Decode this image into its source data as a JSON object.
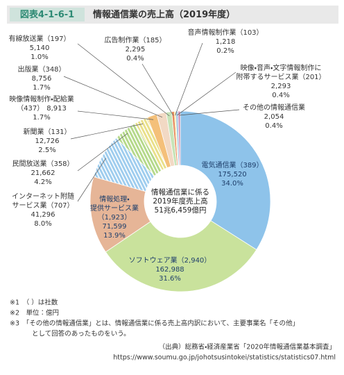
{
  "chart_data": {
    "type": "donut",
    "figure_label": "図表4-1-6-1",
    "title": "情報通信業の売上高（2019年度）",
    "center_label": [
      "情報通信業に係る",
      "2019年度売上高",
      "51兆6,459億円"
    ],
    "slices": [
      {
        "name": [
          "電気通信業（389）"
        ],
        "value": 175520,
        "value_label": "175,520",
        "share": 34.0,
        "share_label": "34.0%",
        "color": "#8ec3ea",
        "hatch": false
      },
      {
        "name": [
          "ソフトウェア業（2,940）"
        ],
        "value": 162988,
        "value_label": "162,988",
        "share": 31.6,
        "share_label": "31.6%",
        "color": "#c9e29c",
        "hatch": false
      },
      {
        "name": [
          "情報処理・",
          "提供サービス業",
          "（1,923）"
        ],
        "value": 71599,
        "value_label": "71,599",
        "share": 13.9,
        "share_label": "13.9%",
        "color": "#e6b597",
        "hatch": false
      },
      {
        "name": [
          "インターネット附随",
          "サービス業（707）"
        ],
        "value": 41296,
        "value_label": "41,296",
        "share": 8.0,
        "share_label": "8.0%",
        "color": "#9fcdee",
        "hatch": true
      },
      {
        "name": [
          "民間放送業（358）"
        ],
        "value": 21662,
        "value_label": "21,662",
        "share": 4.2,
        "share_label": "4.2%",
        "color": "#b5d98a",
        "hatch": true
      },
      {
        "name": [
          "新聞業（131）"
        ],
        "value": 12726,
        "value_label": "12,726",
        "share": 2.5,
        "share_label": "2.5%",
        "color": "#e9e08a",
        "hatch": true
      },
      {
        "name": [
          "映像情報制作・配給業",
          "（437）"
        ],
        "value": 8913,
        "value_label": "8,913",
        "share": 1.7,
        "share_label": "1.7%",
        "color": "#f4c07a",
        "hatch": false
      },
      {
        "name": [
          "出版業（348）"
        ],
        "value": 8756,
        "value_label": "8,756",
        "share": 1.7,
        "share_label": "1.7%",
        "color": "#f2d9c4",
        "hatch": false
      },
      {
        "name": [
          "有線放送業（197）"
        ],
        "value": 5140,
        "value_label": "5,140",
        "share": 1.0,
        "share_label": "1.0%",
        "color": "#c7e4b8",
        "hatch": false
      },
      {
        "name": [
          "広告制作業（185）"
        ],
        "value": 2295,
        "value_label": "2,295",
        "share": 0.4,
        "share_label": "0.4%",
        "color": "#e88a5a",
        "hatch": false
      },
      {
        "name": [
          "音声情報制作業（103）"
        ],
        "value": 1218,
        "value_label": "1,218",
        "share": 0.2,
        "share_label": "0.2%",
        "color": "#f6e27a",
        "hatch": false
      },
      {
        "name": [
          "映像・音声・文字情報制作に",
          "附帯するサービス業（201）"
        ],
        "value": 2293,
        "value_label": "2,293",
        "share": 0.4,
        "share_label": "0.4%",
        "color": "#a7c8e6",
        "hatch": false
      },
      {
        "name": [
          "その他の情報通信業"
        ],
        "value": 2054,
        "value_label": "2,054",
        "share": 0.4,
        "share_label": "0.4%",
        "color": "#d08ab0",
        "hatch": false
      }
    ],
    "notes": [
      "※1　（ ）は社数",
      "※2　単位：億円",
      "※3　「その他の情報通信業」とは、情報通信業に係る売上高内訳において、主要事業名「その他」",
      "として回答のあったものをいう。"
    ],
    "source": [
      "（出典）総務省・経済産業省「2020年情報通信業基本調査」",
      "https://www.soumu.go.jp/johotsusintokei/statistics/statistics07.html"
    ]
  }
}
